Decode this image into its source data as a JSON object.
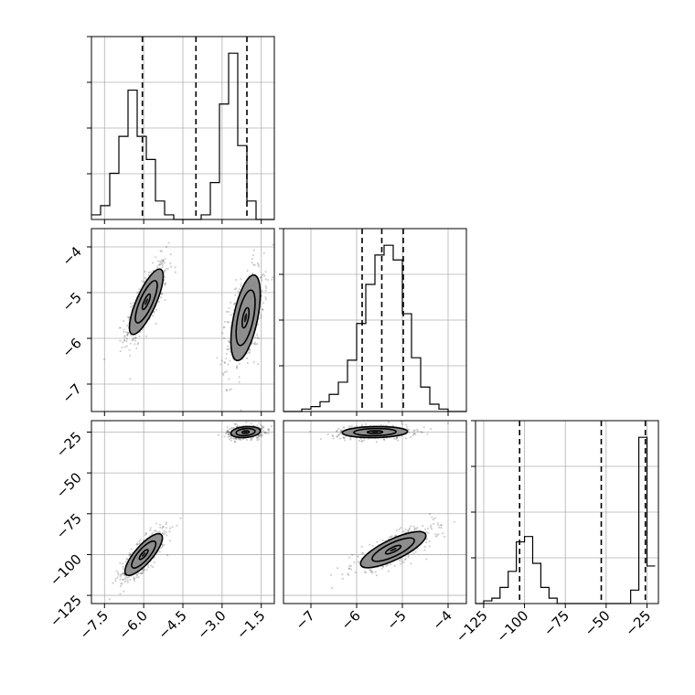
{
  "chart_data": {
    "type": "corner",
    "parameters": [
      {
        "range": [
          -8.0,
          -1.0
        ],
        "ticks": [
          -7.5,
          -6.0,
          -4.5,
          -3.0,
          -1.5
        ],
        "tick_labels": [
          "−7.5",
          "−6.0",
          "−4.5",
          "−3.0",
          "−1.5"
        ]
      },
      {
        "range": [
          -7.6,
          -3.6
        ],
        "ticks": [
          -7,
          -6,
          -5,
          -4
        ],
        "tick_labels": [
          "−7",
          "−6",
          "−5",
          "−4"
        ]
      },
      {
        "range": [
          -130,
          -18
        ],
        "ticks": [
          -125,
          -100,
          -75,
          -50,
          -25
        ],
        "tick_labels": [
          "−125",
          "−100",
          "−75",
          "−50",
          "−25"
        ]
      }
    ],
    "histograms": [
      {
        "bin_edges": [
          -8.0,
          -7.65,
          -7.3,
          -6.95,
          -6.6,
          -6.25,
          -5.9,
          -5.55,
          -5.2,
          -4.85,
          -4.5,
          -4.15,
          -3.8,
          -3.45,
          -3.1,
          -2.75,
          -2.4,
          -2.05,
          -1.7,
          -1.35,
          -1.0
        ],
        "counts": [
          1,
          3,
          10,
          18,
          28,
          18,
          13,
          4,
          1,
          0,
          0,
          0,
          1,
          8,
          25,
          36,
          16,
          4,
          0,
          0
        ],
        "quantiles": [
          -6.05,
          -4.0,
          -2.05
        ]
      },
      {
        "bin_edges": [
          -7.6,
          -7.4,
          -7.2,
          -7.0,
          -6.8,
          -6.6,
          -6.4,
          -6.2,
          -6.0,
          -5.8,
          -5.6,
          -5.4,
          -5.2,
          -5.0,
          -4.8,
          -4.6,
          -4.4,
          -4.2,
          -4.0,
          -3.8,
          -3.6
        ],
        "counts": [
          0,
          0,
          1,
          2,
          4,
          7,
          12,
          21,
          36,
          52,
          64,
          68,
          62,
          40,
          22,
          10,
          3,
          1,
          0,
          0
        ],
        "quantiles": [
          -5.88,
          -5.45,
          -4.98
        ]
      },
      {
        "bin_edges": [
          -130,
          -125,
          -120,
          -115,
          -110,
          -105,
          -100,
          -95,
          -90,
          -85,
          -80,
          -75,
          -70,
          -65,
          -60,
          -55,
          -50,
          -45,
          -40,
          -35,
          -30,
          -25,
          -20
        ],
        "counts": [
          0,
          1,
          2,
          6,
          12,
          23,
          25,
          15,
          6,
          2,
          0,
          0,
          0,
          0,
          0,
          0,
          0,
          0,
          0,
          5,
          62,
          14
        ],
        "quantiles": [
          -103,
          -53,
          -26
        ]
      }
    ],
    "pairs": [
      {
        "row": 1,
        "col": 0,
        "clusters": [
          {
            "center": [
              -5.9,
              -5.2
            ],
            "sx": 0.38,
            "sy": 0.42,
            "rho": 0.78,
            "n": 520
          },
          {
            "center": [
              -2.1,
              -5.55
            ],
            "sx": 0.33,
            "sy": 0.55,
            "rho": 0.55,
            "n": 520
          }
        ]
      },
      {
        "row": 2,
        "col": 0,
        "clusters": [
          {
            "center": [
              -6.0,
              -100
            ],
            "sx": 0.42,
            "sy": 7.5,
            "rho": 0.8,
            "n": 520
          },
          {
            "center": [
              -2.1,
              -25
            ],
            "sx": 0.33,
            "sy": 2.0,
            "rho": 0.2,
            "n": 420
          }
        ]
      },
      {
        "row": 2,
        "col": 1,
        "clusters": [
          {
            "center": [
              -5.6,
              -25
            ],
            "sx": 0.42,
            "sy": 2.0,
            "rho": 0.1,
            "n": 420
          },
          {
            "center": [
              -5.2,
              -97
            ],
            "sx": 0.42,
            "sy": 6.5,
            "rho": 0.78,
            "n": 520
          }
        ]
      }
    ],
    "grid": true,
    "contour_levels": [
      0.4,
      1.1,
      1.7
    ]
  }
}
